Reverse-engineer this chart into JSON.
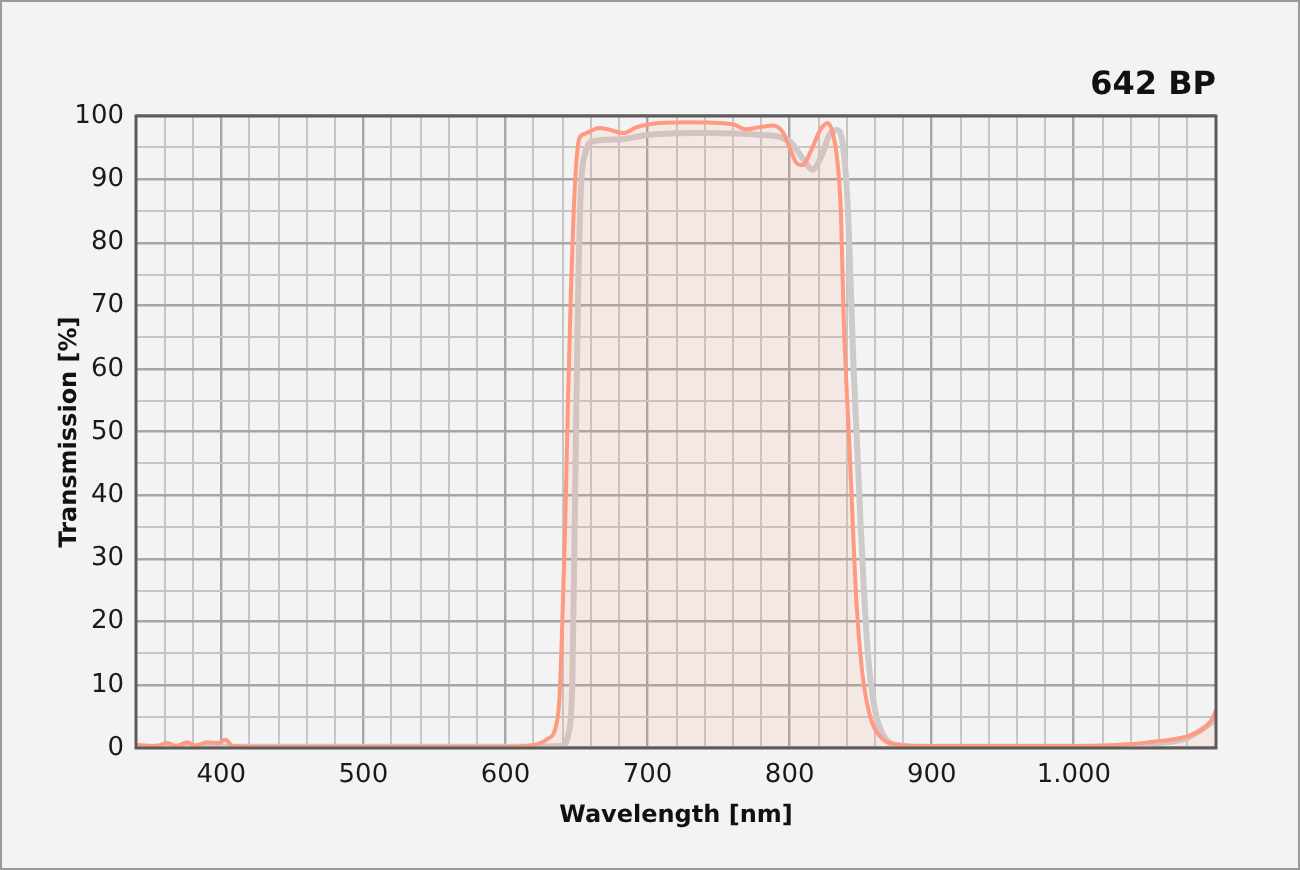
{
  "chart_data": {
    "type": "line",
    "title": "642 BP",
    "xlabel": "Wavelength [nm]",
    "ylabel": "Transmission [%]",
    "xlim": [
      340,
      1100
    ],
    "ylim": [
      0,
      100
    ],
    "xticks": [
      {
        "value": 360,
        "label": null
      },
      {
        "value": 380,
        "label": null
      },
      400,
      {
        "value": 420,
        "label": null
      },
      {
        "value": 440,
        "label": null
      },
      {
        "value": 460,
        "label": null
      },
      {
        "value": 480,
        "label": null
      },
      500,
      {
        "value": 520,
        "label": null
      },
      {
        "value": 540,
        "label": null
      },
      {
        "value": 560,
        "label": null
      },
      {
        "value": 580,
        "label": null
      },
      600,
      {
        "value": 620,
        "label": null
      },
      {
        "value": 640,
        "label": null
      },
      {
        "value": 660,
        "label": null
      },
      {
        "value": 680,
        "label": null
      },
      700,
      {
        "value": 720,
        "label": null
      },
      {
        "value": 740,
        "label": null
      },
      {
        "value": 760,
        "label": null
      },
      {
        "value": 780,
        "label": null
      },
      800,
      {
        "value": 820,
        "label": null
      },
      {
        "value": 840,
        "label": null
      },
      {
        "value": 860,
        "label": null
      },
      {
        "value": 880,
        "label": null
      },
      900,
      {
        "value": 920,
        "label": null
      },
      {
        "value": 940,
        "label": null
      },
      {
        "value": 960,
        "label": null
      },
      {
        "value": 980,
        "label": null
      },
      {
        "value": 1000,
        "label": "1.000"
      },
      {
        "value": 1020,
        "label": null
      },
      {
        "value": 1040,
        "label": null
      },
      {
        "value": 1060,
        "label": null
      },
      {
        "value": 1080,
        "label": null
      }
    ],
    "yticks": [
      0,
      {
        "value": 5,
        "label": null
      },
      10,
      {
        "value": 15,
        "label": null
      },
      20,
      {
        "value": 25,
        "label": null
      },
      30,
      {
        "value": 35,
        "label": null
      },
      40,
      {
        "value": 45,
        "label": null
      },
      50,
      {
        "value": 55,
        "label": null
      },
      60,
      {
        "value": 65,
        "label": null
      },
      70,
      {
        "value": 75,
        "label": null
      },
      80,
      {
        "value": 85,
        "label": null
      },
      90,
      {
        "value": 95,
        "label": null
      },
      100
    ],
    "grid": true,
    "legend": false,
    "marker": "none",
    "line_style": "solid",
    "series": [
      {
        "color": "#cfcaca",
        "x": [
          340,
          400,
          500,
          600,
          640,
          644,
          647,
          649,
          651,
          653,
          656,
          662,
          680,
          700,
          740,
          780,
          800,
          810,
          816,
          822,
          828,
          833,
          837,
          841,
          845,
          850,
          855,
          860,
          866,
          875,
          900,
          1000,
          1060,
          1080,
          1100
        ],
        "values": [
          0.2,
          0.2,
          0.2,
          0.2,
          0.3,
          2,
          10,
          40,
          70,
          88,
          94,
          96,
          96.3,
          97,
          97.3,
          97,
          96,
          93,
          91.5,
          93.5,
          97,
          97.8,
          96,
          85,
          60,
          35,
          15,
          6,
          2,
          0.5,
          0.2,
          0.2,
          0.8,
          1.6,
          4.5
        ]
      },
      {
        "type": "area",
        "color": "#ff9a80",
        "x": [
          340,
          350,
          356,
          362,
          368,
          376,
          382,
          390,
          398,
          403,
          408,
          420,
          500,
          600,
          620,
          630,
          635,
          638,
          640,
          642,
          644,
          646,
          648,
          650,
          652,
          656,
          666,
          672,
          683,
          692,
          701,
          727,
          760,
          769,
          778,
          788,
          795,
          800,
          805,
          809,
          815,
          822,
          827,
          830,
          833,
          836,
          838,
          842,
          847,
          851,
          854,
          858,
          866,
          874,
          890,
          1000,
          1040,
          1056,
          1070,
          1079,
          1088,
          1093,
          1097,
          1100
        ],
        "values": [
          0.5,
          0.3,
          0.4,
          0.8,
          0.3,
          0.9,
          0.4,
          0.9,
          0.8,
          1.3,
          0.3,
          0.2,
          0.2,
          0.2,
          0.5,
          1.5,
          3,
          8,
          20,
          35,
          55,
          72,
          85,
          93,
          96.5,
          97.2,
          98.1,
          97.9,
          97.3,
          98.2,
          98.7,
          99,
          98.7,
          97.9,
          98.2,
          98.5,
          97.5,
          95,
          92.5,
          92.2,
          94.5,
          98,
          98.9,
          97.5,
          94,
          85,
          68,
          48,
          23,
          12,
          7.6,
          4,
          1.3,
          0.6,
          0.3,
          0.3,
          0.6,
          1,
          1.4,
          1.8,
          2.6,
          3.4,
          4.5,
          6
        ]
      }
    ]
  }
}
